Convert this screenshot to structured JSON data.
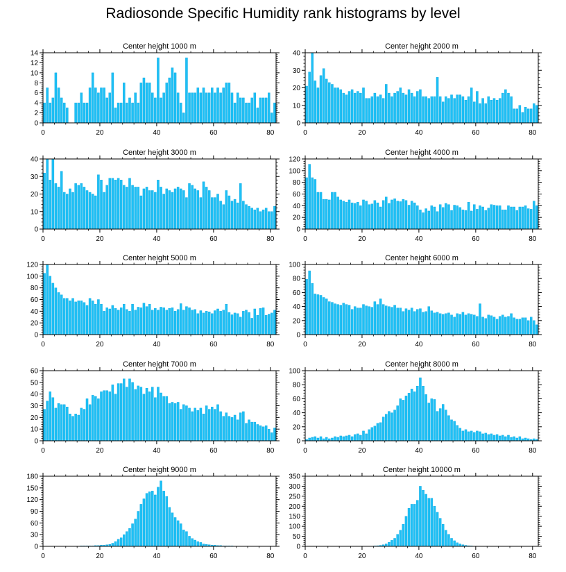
{
  "title": "Radiosonde Specific Humidity rank histograms by level",
  "colors": {
    "bar": "#1ec0f5",
    "bar_edge": "#0aa6e0",
    "axis": "#000000"
  },
  "chart_data": [
    {
      "type": "bar",
      "title": "Center height 1000 m",
      "xlim": [
        0,
        82
      ],
      "ylim": [
        0,
        14
      ],
      "xticks": [
        0,
        20,
        40,
        60,
        80
      ],
      "yticks": [
        0,
        2,
        4,
        6,
        8,
        10,
        12,
        14
      ],
      "values": [
        4,
        7,
        4,
        5,
        10,
        7,
        5,
        4,
        3,
        0,
        0,
        4,
        4,
        6,
        4,
        4,
        7,
        10,
        7,
        6,
        7,
        7,
        5,
        6,
        10,
        3,
        4,
        4,
        8,
        4,
        5,
        4,
        6,
        4,
        8,
        9,
        8,
        8,
        6,
        5,
        13,
        5,
        6,
        8,
        9,
        11,
        10,
        6,
        4,
        2,
        13,
        6,
        6,
        6,
        7,
        6,
        7,
        6,
        6,
        7,
        6,
        7,
        6,
        7,
        8,
        8,
        6,
        4,
        6,
        5,
        5,
        4,
        4,
        5,
        6,
        3,
        5,
        5,
        5,
        6,
        2,
        4
      ]
    },
    {
      "type": "bar",
      "title": "Center height 2000 m",
      "xlim": [
        0,
        82
      ],
      "ylim": [
        0,
        40
      ],
      "xticks": [
        0,
        20,
        40,
        60,
        80
      ],
      "yticks": [
        0,
        10,
        20,
        30,
        40
      ],
      "values": [
        21,
        29,
        40,
        24,
        20,
        27,
        31,
        25,
        23,
        22,
        20,
        20,
        19,
        17,
        16,
        18,
        19,
        17,
        18,
        17,
        20,
        14,
        14,
        15,
        17,
        15,
        16,
        14,
        22,
        17,
        15,
        17,
        18,
        20,
        17,
        16,
        19,
        17,
        15,
        18,
        19,
        15,
        15,
        14,
        15,
        15,
        26,
        15,
        12,
        15,
        14,
        16,
        14,
        16,
        16,
        15,
        13,
        15,
        20,
        12,
        18,
        11,
        14,
        11,
        15,
        13,
        14,
        13,
        14,
        17,
        19,
        17,
        15,
        8,
        8,
        10,
        6,
        9,
        8,
        8,
        11,
        10
      ]
    },
    {
      "type": "bar",
      "title": "Center height 3000 m",
      "xlim": [
        0,
        82
      ],
      "ylim": [
        0,
        40
      ],
      "xticks": [
        0,
        20,
        40,
        60,
        80
      ],
      "yticks": [
        0,
        10,
        20,
        30,
        40
      ],
      "values": [
        32,
        40,
        28,
        40,
        26,
        24,
        33,
        21,
        20,
        23,
        21,
        26,
        25,
        26,
        24,
        22,
        21,
        20,
        19,
        31,
        28,
        21,
        25,
        29,
        29,
        28,
        29,
        28,
        25,
        24,
        29,
        25,
        24,
        24,
        19,
        23,
        24,
        22,
        22,
        21,
        28,
        24,
        20,
        23,
        22,
        21,
        23,
        24,
        23,
        22,
        18,
        26,
        25,
        23,
        22,
        18,
        27,
        24,
        22,
        18,
        18,
        20,
        16,
        14,
        22,
        19,
        16,
        17,
        15,
        26,
        16,
        14,
        13,
        12,
        11,
        12,
        10,
        11,
        12,
        10,
        10,
        13
      ]
    },
    {
      "type": "bar",
      "title": "Center height 4000 m",
      "xlim": [
        0,
        82
      ],
      "ylim": [
        0,
        120
      ],
      "xticks": [
        0,
        20,
        40,
        60,
        80
      ],
      "yticks": [
        0,
        20,
        40,
        60,
        80,
        100,
        120
      ],
      "values": [
        88,
        111,
        88,
        85,
        63,
        63,
        51,
        51,
        50,
        63,
        63,
        55,
        50,
        48,
        46,
        50,
        45,
        44,
        46,
        40,
        50,
        48,
        42,
        43,
        49,
        45,
        38,
        49,
        55,
        44,
        50,
        52,
        48,
        47,
        51,
        49,
        41,
        48,
        45,
        40,
        33,
        28,
        35,
        31,
        40,
        38,
        30,
        42,
        37,
        44,
        42,
        32,
        41,
        40,
        37,
        33,
        32,
        46,
        31,
        42,
        34,
        40,
        38,
        32,
        36,
        42,
        41,
        40,
        40,
        33,
        33,
        40,
        38,
        38,
        32,
        38,
        38,
        40,
        35,
        34,
        48,
        40
      ]
    },
    {
      "type": "bar",
      "title": "Center height 5000 m",
      "xlim": [
        0,
        82
      ],
      "ylim": [
        0,
        120
      ],
      "xticks": [
        0,
        20,
        40,
        60,
        80
      ],
      "yticks": [
        0,
        20,
        40,
        60,
        80,
        100,
        120
      ],
      "values": [
        105,
        119,
        100,
        88,
        80,
        72,
        68,
        62,
        62,
        58,
        62,
        56,
        58,
        58,
        55,
        50,
        62,
        58,
        52,
        60,
        52,
        40,
        46,
        44,
        50,
        45,
        42,
        46,
        52,
        43,
        40,
        52,
        42,
        47,
        46,
        54,
        48,
        52,
        42,
        45,
        42,
        47,
        46,
        42,
        45,
        46,
        40,
        43,
        53,
        42,
        48,
        46,
        42,
        43,
        36,
        41,
        37,
        40,
        39,
        36,
        41,
        44,
        40,
        42,
        52,
        38,
        34,
        37,
        36,
        30,
        40,
        42,
        38,
        28,
        44,
        33,
        45,
        46,
        33,
        35,
        37,
        42
      ]
    },
    {
      "type": "bar",
      "title": "Center height 6000 m",
      "xlim": [
        0,
        82
      ],
      "ylim": [
        0,
        100
      ],
      "xticks": [
        0,
        20,
        40,
        60,
        80
      ],
      "yticks": [
        0,
        20,
        40,
        60,
        80,
        100
      ],
      "values": [
        79,
        91,
        73,
        58,
        57,
        56,
        53,
        51,
        47,
        46,
        44,
        43,
        42,
        45,
        43,
        42,
        36,
        40,
        38,
        38,
        43,
        41,
        40,
        39,
        47,
        43,
        51,
        43,
        41,
        40,
        39,
        42,
        38,
        38,
        33,
        37,
        35,
        38,
        33,
        36,
        37,
        32,
        33,
        40,
        34,
        31,
        32,
        30,
        29,
        30,
        31,
        28,
        25,
        30,
        29,
        32,
        28,
        30,
        29,
        28,
        26,
        44,
        25,
        23,
        28,
        27,
        25,
        22,
        26,
        28,
        25,
        26,
        30,
        24,
        22,
        22,
        24,
        24,
        20,
        25,
        20,
        14
      ]
    },
    {
      "type": "bar",
      "title": "Center height 7000 m",
      "xlim": [
        0,
        82
      ],
      "ylim": [
        0,
        60
      ],
      "xticks": [
        0,
        20,
        40,
        60,
        80
      ],
      "yticks": [
        0,
        10,
        20,
        30,
        40,
        50,
        60
      ],
      "values": [
        27,
        34,
        42,
        37,
        28,
        32,
        31,
        31,
        29,
        23,
        21,
        23,
        22,
        28,
        27,
        36,
        31,
        39,
        38,
        36,
        42,
        43,
        43,
        42,
        48,
        40,
        49,
        49,
        53,
        46,
        53,
        50,
        44,
        47,
        46,
        40,
        45,
        42,
        46,
        37,
        46,
        41,
        38,
        38,
        32,
        33,
        32,
        33,
        27,
        31,
        30,
        28,
        25,
        28,
        26,
        28,
        23,
        30,
        27,
        29,
        27,
        31,
        25,
        21,
        24,
        21,
        20,
        22,
        18,
        24,
        25,
        15,
        18,
        16,
        16,
        14,
        13,
        12,
        13,
        10,
        7,
        11
      ]
    },
    {
      "type": "bar",
      "title": "Center height 8000 m",
      "xlim": [
        0,
        82
      ],
      "ylim": [
        0,
        100
      ],
      "xticks": [
        0,
        20,
        40,
        60,
        80
      ],
      "yticks": [
        0,
        20,
        40,
        60,
        80,
        100
      ],
      "values": [
        2,
        4,
        5,
        6,
        4,
        6,
        3,
        5,
        3,
        4,
        6,
        5,
        7,
        6,
        7,
        8,
        6,
        9,
        10,
        8,
        14,
        10,
        16,
        19,
        21,
        25,
        26,
        34,
        38,
        42,
        40,
        44,
        50,
        60,
        58,
        64,
        68,
        74,
        70,
        78,
        90,
        78,
        66,
        54,
        60,
        59,
        42,
        46,
        52,
        44,
        36,
        30,
        28,
        22,
        18,
        14,
        16,
        13,
        14,
        12,
        14,
        13,
        10,
        11,
        9,
        10,
        8,
        9,
        7,
        8,
        6,
        8,
        5,
        6,
        4,
        6,
        3,
        4,
        3,
        2,
        3,
        2
      ]
    },
    {
      "type": "bar",
      "title": "Center height 9000 m",
      "xlim": [
        0,
        82
      ],
      "ylim": [
        0,
        180
      ],
      "xticks": [
        0,
        20,
        40,
        60,
        80
      ],
      "yticks": [
        0,
        30,
        60,
        90,
        120,
        150,
        180
      ],
      "values": [
        0,
        0,
        0,
        0,
        0,
        0,
        0,
        0,
        0,
        0,
        0,
        0,
        0,
        1,
        1,
        1,
        1,
        1,
        2,
        2,
        3,
        3,
        4,
        5,
        8,
        12,
        18,
        22,
        30,
        38,
        46,
        58,
        70,
        90,
        108,
        122,
        136,
        140,
        142,
        132,
        152,
        168,
        142,
        128,
        100,
        86,
        74,
        66,
        58,
        42,
        38,
        26,
        20,
        16,
        12,
        10,
        6,
        5,
        4,
        3,
        3,
        2,
        2,
        1,
        1,
        1,
        1,
        0,
        0,
        0,
        0,
        0,
        0,
        0,
        0,
        0,
        0,
        0,
        0,
        0,
        0,
        0
      ]
    },
    {
      "type": "bar",
      "title": "Center height 10000 m",
      "xlim": [
        0,
        82
      ],
      "ylim": [
        0,
        350
      ],
      "xticks": [
        0,
        20,
        40,
        60,
        80
      ],
      "yticks": [
        0,
        50,
        100,
        150,
        200,
        250,
        300,
        350
      ],
      "values": [
        0,
        0,
        0,
        0,
        0,
        0,
        0,
        0,
        0,
        0,
        0,
        0,
        0,
        0,
        0,
        0,
        0,
        0,
        0,
        0,
        0,
        0,
        0,
        0,
        2,
        3,
        5,
        8,
        12,
        20,
        30,
        40,
        60,
        80,
        110,
        150,
        190,
        210,
        210,
        230,
        300,
        280,
        260,
        240,
        240,
        200,
        170,
        140,
        110,
        80,
        60,
        40,
        28,
        18,
        12,
        8,
        5,
        3,
        2,
        1,
        0,
        0,
        0,
        0,
        0,
        0,
        0,
        0,
        0,
        0,
        0,
        0,
        0,
        0,
        0,
        0,
        0,
        0,
        0,
        0,
        0,
        0
      ]
    }
  ]
}
